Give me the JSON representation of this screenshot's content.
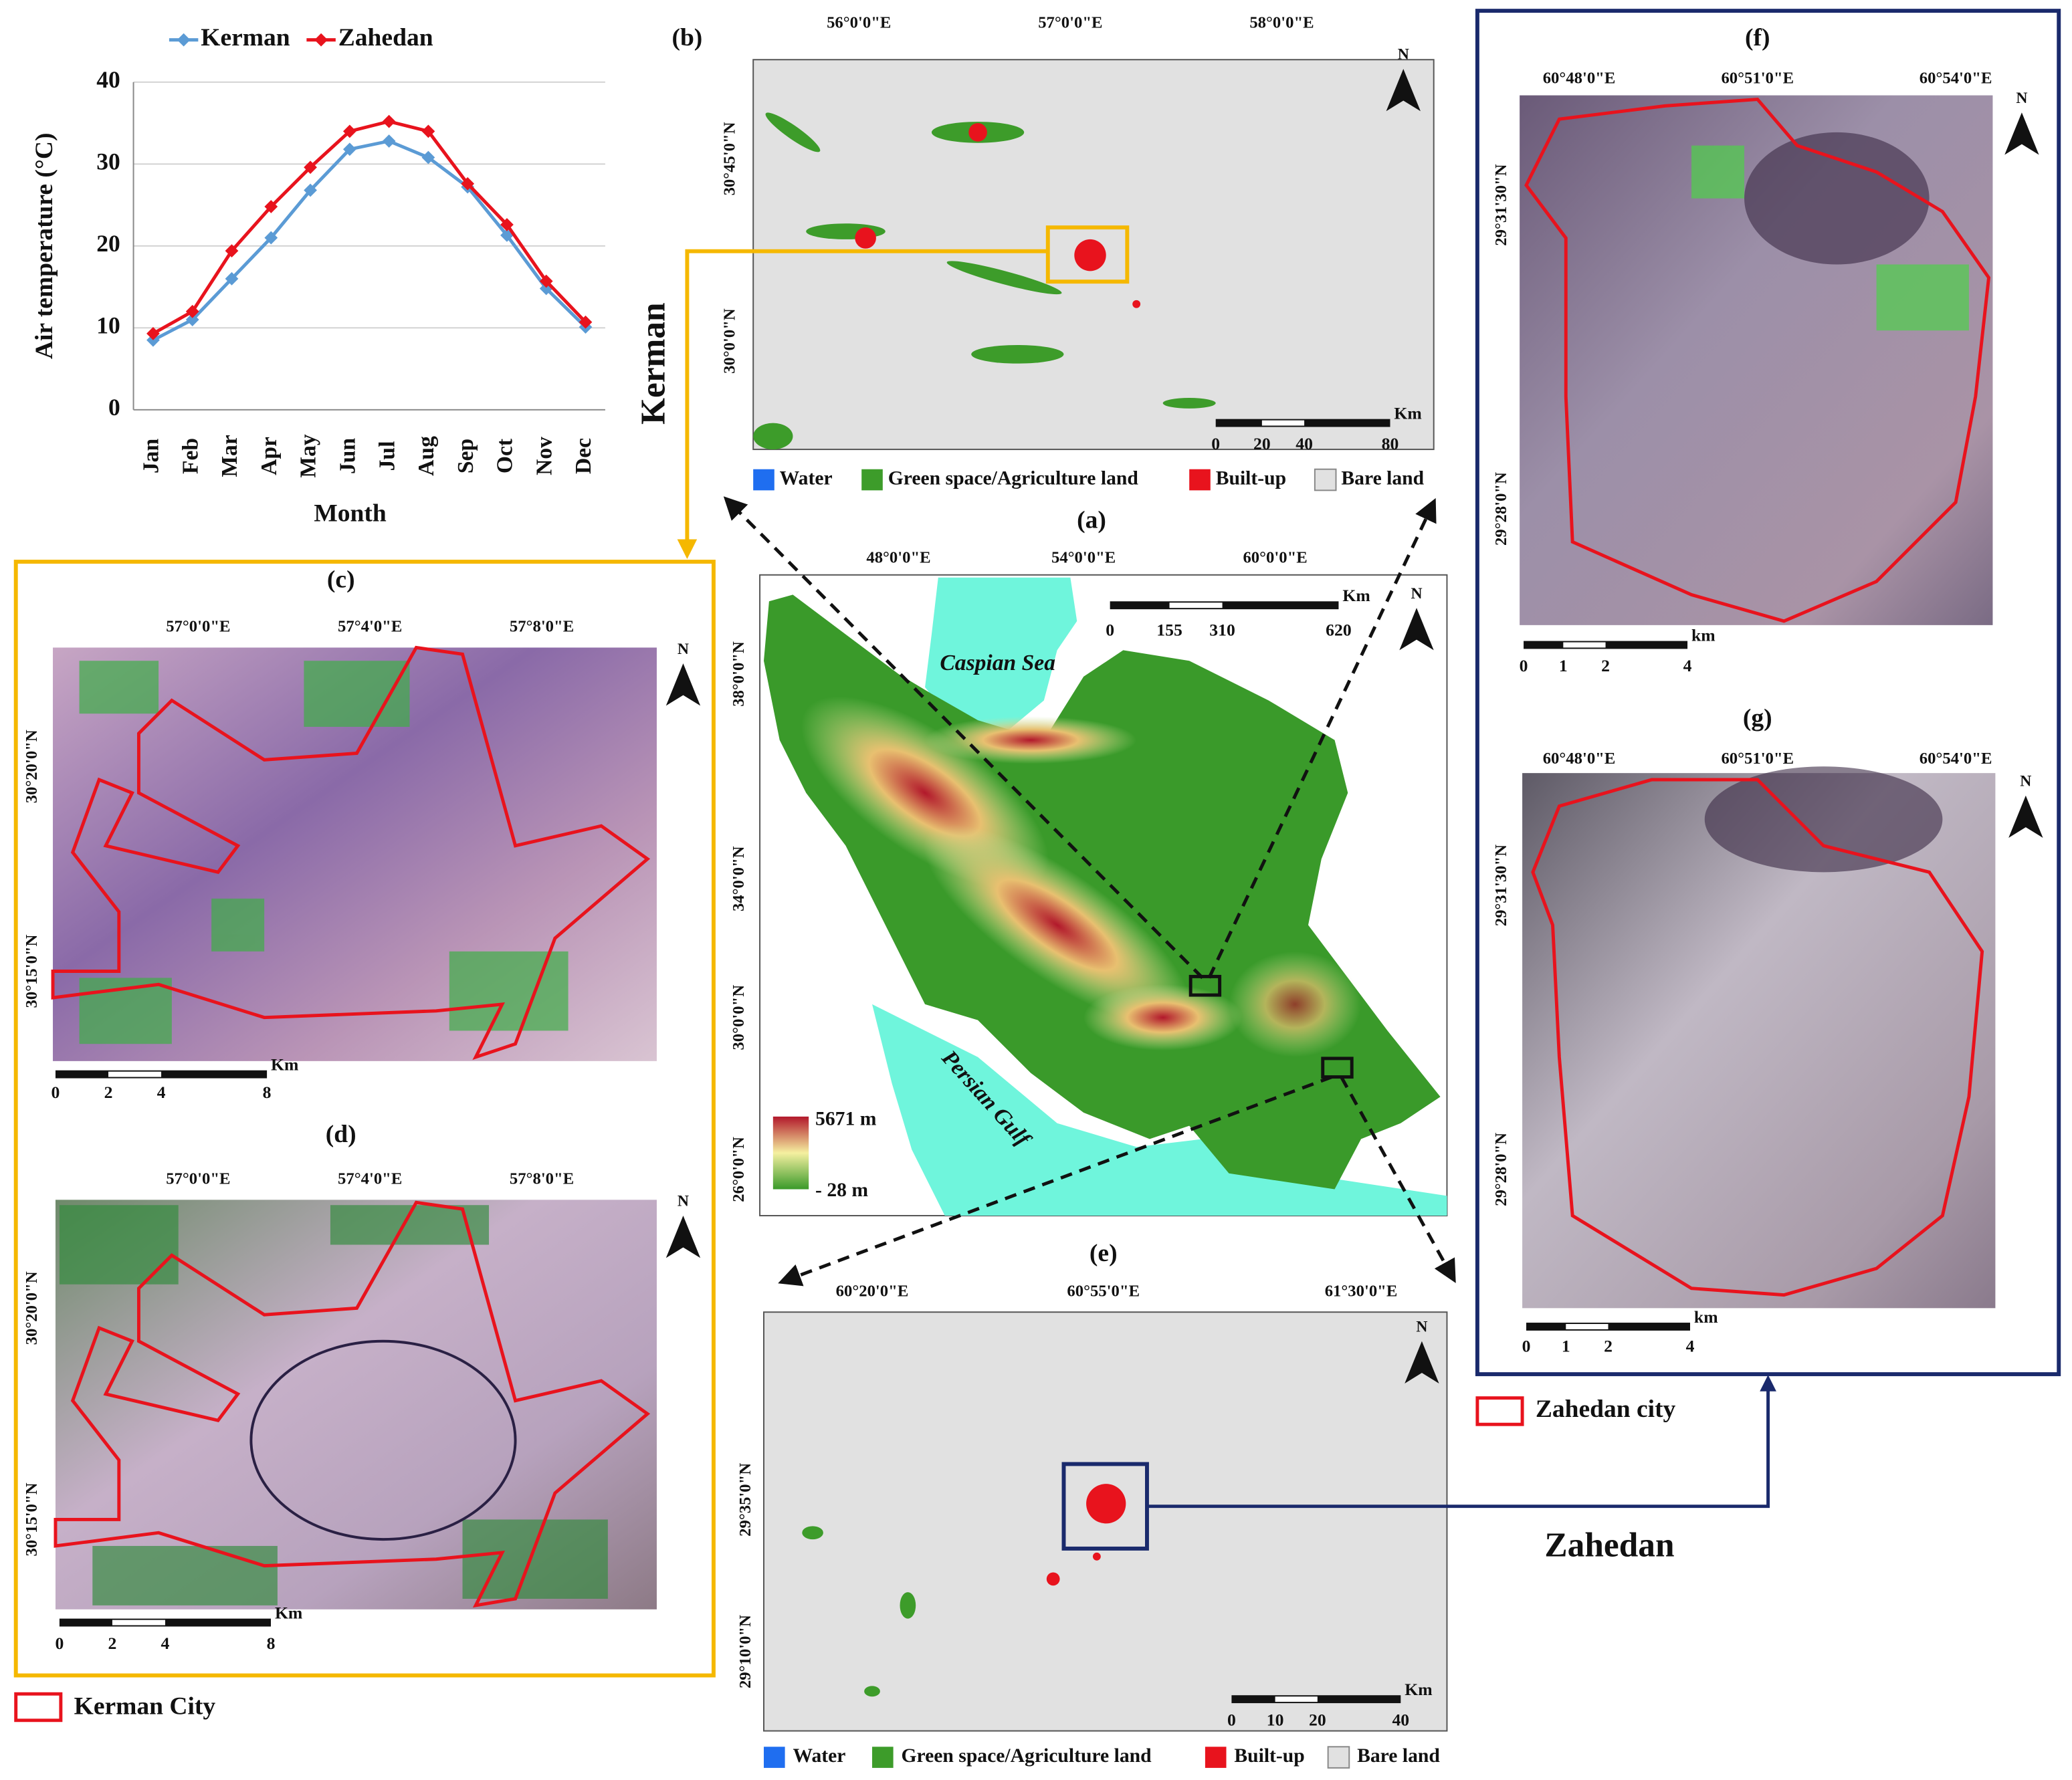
{
  "chart_data": {
    "type": "line",
    "categories": [
      "Jan",
      "Feb",
      "Mar",
      "Apr",
      "May",
      "Jun",
      "Jul",
      "Aug",
      "Sep",
      "Oct",
      "Nov",
      "Dec"
    ],
    "series": [
      {
        "name": "Kerman",
        "color": "#5b9bd5",
        "values": [
          8.5,
          11,
          16,
          21,
          26.8,
          31.8,
          32.8,
          30.8,
          27.2,
          21.3,
          14.8,
          10.1
        ]
      },
      {
        "name": "Zahedan",
        "color": "#e8131d",
        "values": [
          9.3,
          12,
          19.4,
          24.8,
          29.6,
          34,
          35.2,
          34,
          27.6,
          22.6,
          15.7,
          10.7
        ]
      }
    ],
    "ylim": [
      0,
      40
    ],
    "yticks": [
      0,
      10,
      20,
      30,
      40
    ],
    "grid": true,
    "y_label": "Air temperature (°C)",
    "x_label": "Month"
  },
  "maps": [
    {
      "label": "(a)",
      "top_labels": [
        "48°0'0\"E",
        "54°0'0\"E",
        "60°0'0\"E"
      ],
      "left_labels": [
        "38°0'0\"N",
        "34°0'0\"N",
        "30°0'0\"N",
        "26°0'0\"N"
      ],
      "scale_labels": [
        "0",
        "155",
        "310",
        "620"
      ],
      "scale_unit": "Km",
      "north": "N"
    },
    {
      "label": "(b)",
      "top_labels": [
        "56°0'0\"E",
        "57°0'0\"E",
        "58°0'0\"E"
      ],
      "left_labels": [
        "30°45'0\"N",
        "30°0'0\"N"
      ],
      "scale_labels": [
        "0",
        "20",
        "40",
        "80"
      ],
      "scale_unit": "Km",
      "north": "N"
    },
    {
      "label": "(c)",
      "top_labels": [
        "57°0'0\"E",
        "57°4'0\"E",
        "57°8'0\"E"
      ],
      "left_labels": [
        "30°20'0\"N",
        "30°15'0\"N"
      ],
      "scale_labels": [
        "0",
        "2",
        "4",
        "8"
      ],
      "scale_unit": "Km",
      "north": "N"
    },
    {
      "label": "(d)",
      "top_labels": [
        "57°0'0\"E",
        "57°4'0\"E",
        "57°8'0\"E"
      ],
      "left_labels": [
        "30°20'0\"N",
        "30°15'0\"N"
      ],
      "scale_labels": [
        "0",
        "2",
        "4",
        "8"
      ],
      "scale_unit": "Km",
      "north": "N"
    },
    {
      "label": "(e)",
      "top_labels": [
        "60°20'0\"E",
        "60°55'0\"E",
        "61°30'0\"E"
      ],
      "left_labels": [
        "29°35'0\"N",
        "29°10'0\"N"
      ],
      "scale_labels": [
        "0",
        "10",
        "20",
        "40"
      ],
      "scale_unit": "Km",
      "north": "N"
    },
    {
      "label": "(f)",
      "top_labels": [
        "60°48'0\"E",
        "60°51'0\"E",
        "60°54'0\"E"
      ],
      "left_labels": [
        "29°31'30\"N",
        "29°28'0\"N"
      ],
      "scale_labels": [
        "0",
        "1",
        "2",
        "4"
      ],
      "scale_unit": "km",
      "north": "N"
    },
    {
      "label": "(g)",
      "top_labels": [
        "60°48'0\"E",
        "60°51'0\"E",
        "60°54'0\"E"
      ],
      "left_labels": [
        "29°31'30\"N",
        "29°28'0\"N"
      ],
      "scale_labels": [
        "0",
        "1",
        "2",
        "4"
      ],
      "scale_unit": "km",
      "north": "N"
    }
  ],
  "land_classes": [
    "Water",
    "Green space/Agriculture land",
    "Built-up",
    "Bare land"
  ],
  "elevation": {
    "max": "5671 m",
    "min": "- 28 m"
  },
  "seas": {
    "caspian": "Caspian Sea",
    "gulf": "Persian Gulf"
  },
  "cities": {
    "kerman": "Kerman",
    "zahedan": "Zahedan",
    "kerman_boundary": "Kerman City",
    "zahedan_boundary": "Zahedan city"
  }
}
